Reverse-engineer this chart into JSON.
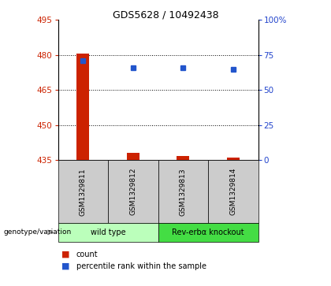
{
  "title": "GDS5628 / 10492438",
  "samples": [
    "GSM1329811",
    "GSM1329812",
    "GSM1329813",
    "GSM1329814"
  ],
  "bar_values": [
    480.8,
    438.2,
    436.8,
    436.2
  ],
  "bar_base": 435,
  "blue_values": [
    477.5,
    474.5,
    474.5,
    474.0
  ],
  "ylim_left": [
    435,
    495
  ],
  "ylim_right": [
    0,
    100
  ],
  "yticks_left": [
    435,
    450,
    465,
    480,
    495
  ],
  "yticks_right": [
    0,
    25,
    50,
    75,
    100
  ],
  "ytick_labels_right": [
    "0",
    "25",
    "50",
    "75",
    "100%"
  ],
  "bar_color": "#cc2200",
  "blue_color": "#2255cc",
  "groups": [
    {
      "label": "wild type",
      "samples": [
        0,
        1
      ],
      "color": "#bbffbb"
    },
    {
      "label": "Rev-erbα knockout",
      "samples": [
        2,
        3
      ],
      "color": "#44dd44"
    }
  ],
  "genotype_label": "genotype/variation",
  "legend_count_label": "count",
  "legend_pct_label": "percentile rank within the sample",
  "bar_width": 0.25,
  "left_tick_color": "#cc2200",
  "right_tick_color": "#2244cc",
  "sample_box_color": "#cccccc"
}
